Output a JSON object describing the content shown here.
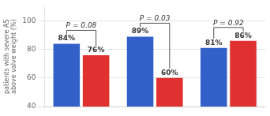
{
  "chart_data": {
    "type": "bar",
    "ylabel": "patients with severe AS\nabove valve weight (%)",
    "categories": [
      null,
      null,
      null
    ],
    "series": [
      {
        "color": "#3060C8",
        "values": [
          84,
          89,
          81
        ],
        "value_labels": [
          "84%",
          "89%",
          "81%"
        ]
      },
      {
        "color": "#E03030",
        "values": [
          76,
          60,
          86
        ],
        "value_labels": [
          "76%",
          "60%",
          "86%"
        ]
      }
    ],
    "annotations": [
      "P = 0.08",
      "P = 0.03",
      "P = 0.92"
    ],
    "ylim": [
      40,
      110
    ],
    "yticks": [
      40,
      60,
      80,
      100
    ],
    "grid": true,
    "data_labels": true,
    "tick_labels": "y"
  }
}
